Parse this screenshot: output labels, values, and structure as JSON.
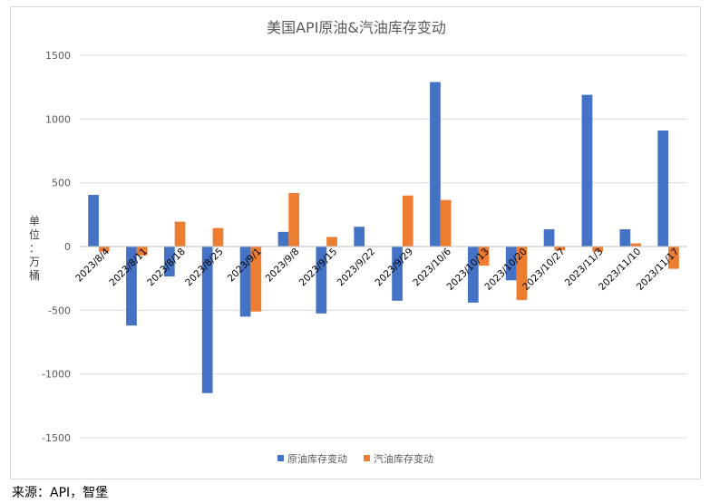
{
  "chart_data": {
    "type": "bar",
    "title": "美国API原油&汽油库存变动",
    "ylabel": "单位：万桶",
    "ylim": [
      -1500,
      1500
    ],
    "yticks": [
      1500,
      1000,
      500,
      0,
      -500,
      -1000,
      -1500
    ],
    "grid": true,
    "legend_position": "bottom",
    "categories": [
      "2023/8/4",
      "2023/8/11",
      "2023/8/18",
      "2023/8/25",
      "2023/9/1",
      "2023/9/8",
      "2023/9/15",
      "2023/9/22",
      "2023/9/29",
      "2023/10/6",
      "2023/10/13",
      "2023/10/20",
      "2023/10/27",
      "2023/11/3",
      "2023/11/10",
      "2023/11/17"
    ],
    "series": [
      {
        "name": "原油库存变动",
        "color": "#4472C4",
        "values": [
          405,
          -620,
          -235,
          -1150,
          -550,
          115,
          -525,
          155,
          -425,
          1290,
          -440,
          -265,
          135,
          1190,
          135,
          910
        ]
      },
      {
        "name": "汽油库存变动",
        "color": "#ED7D31",
        "values": [
          -40,
          -70,
          195,
          145,
          -510,
          420,
          75,
          0,
          400,
          365,
          -150,
          -420,
          -30,
          -40,
          25,
          -175
        ]
      }
    ]
  },
  "source": "来源：API，智堡"
}
